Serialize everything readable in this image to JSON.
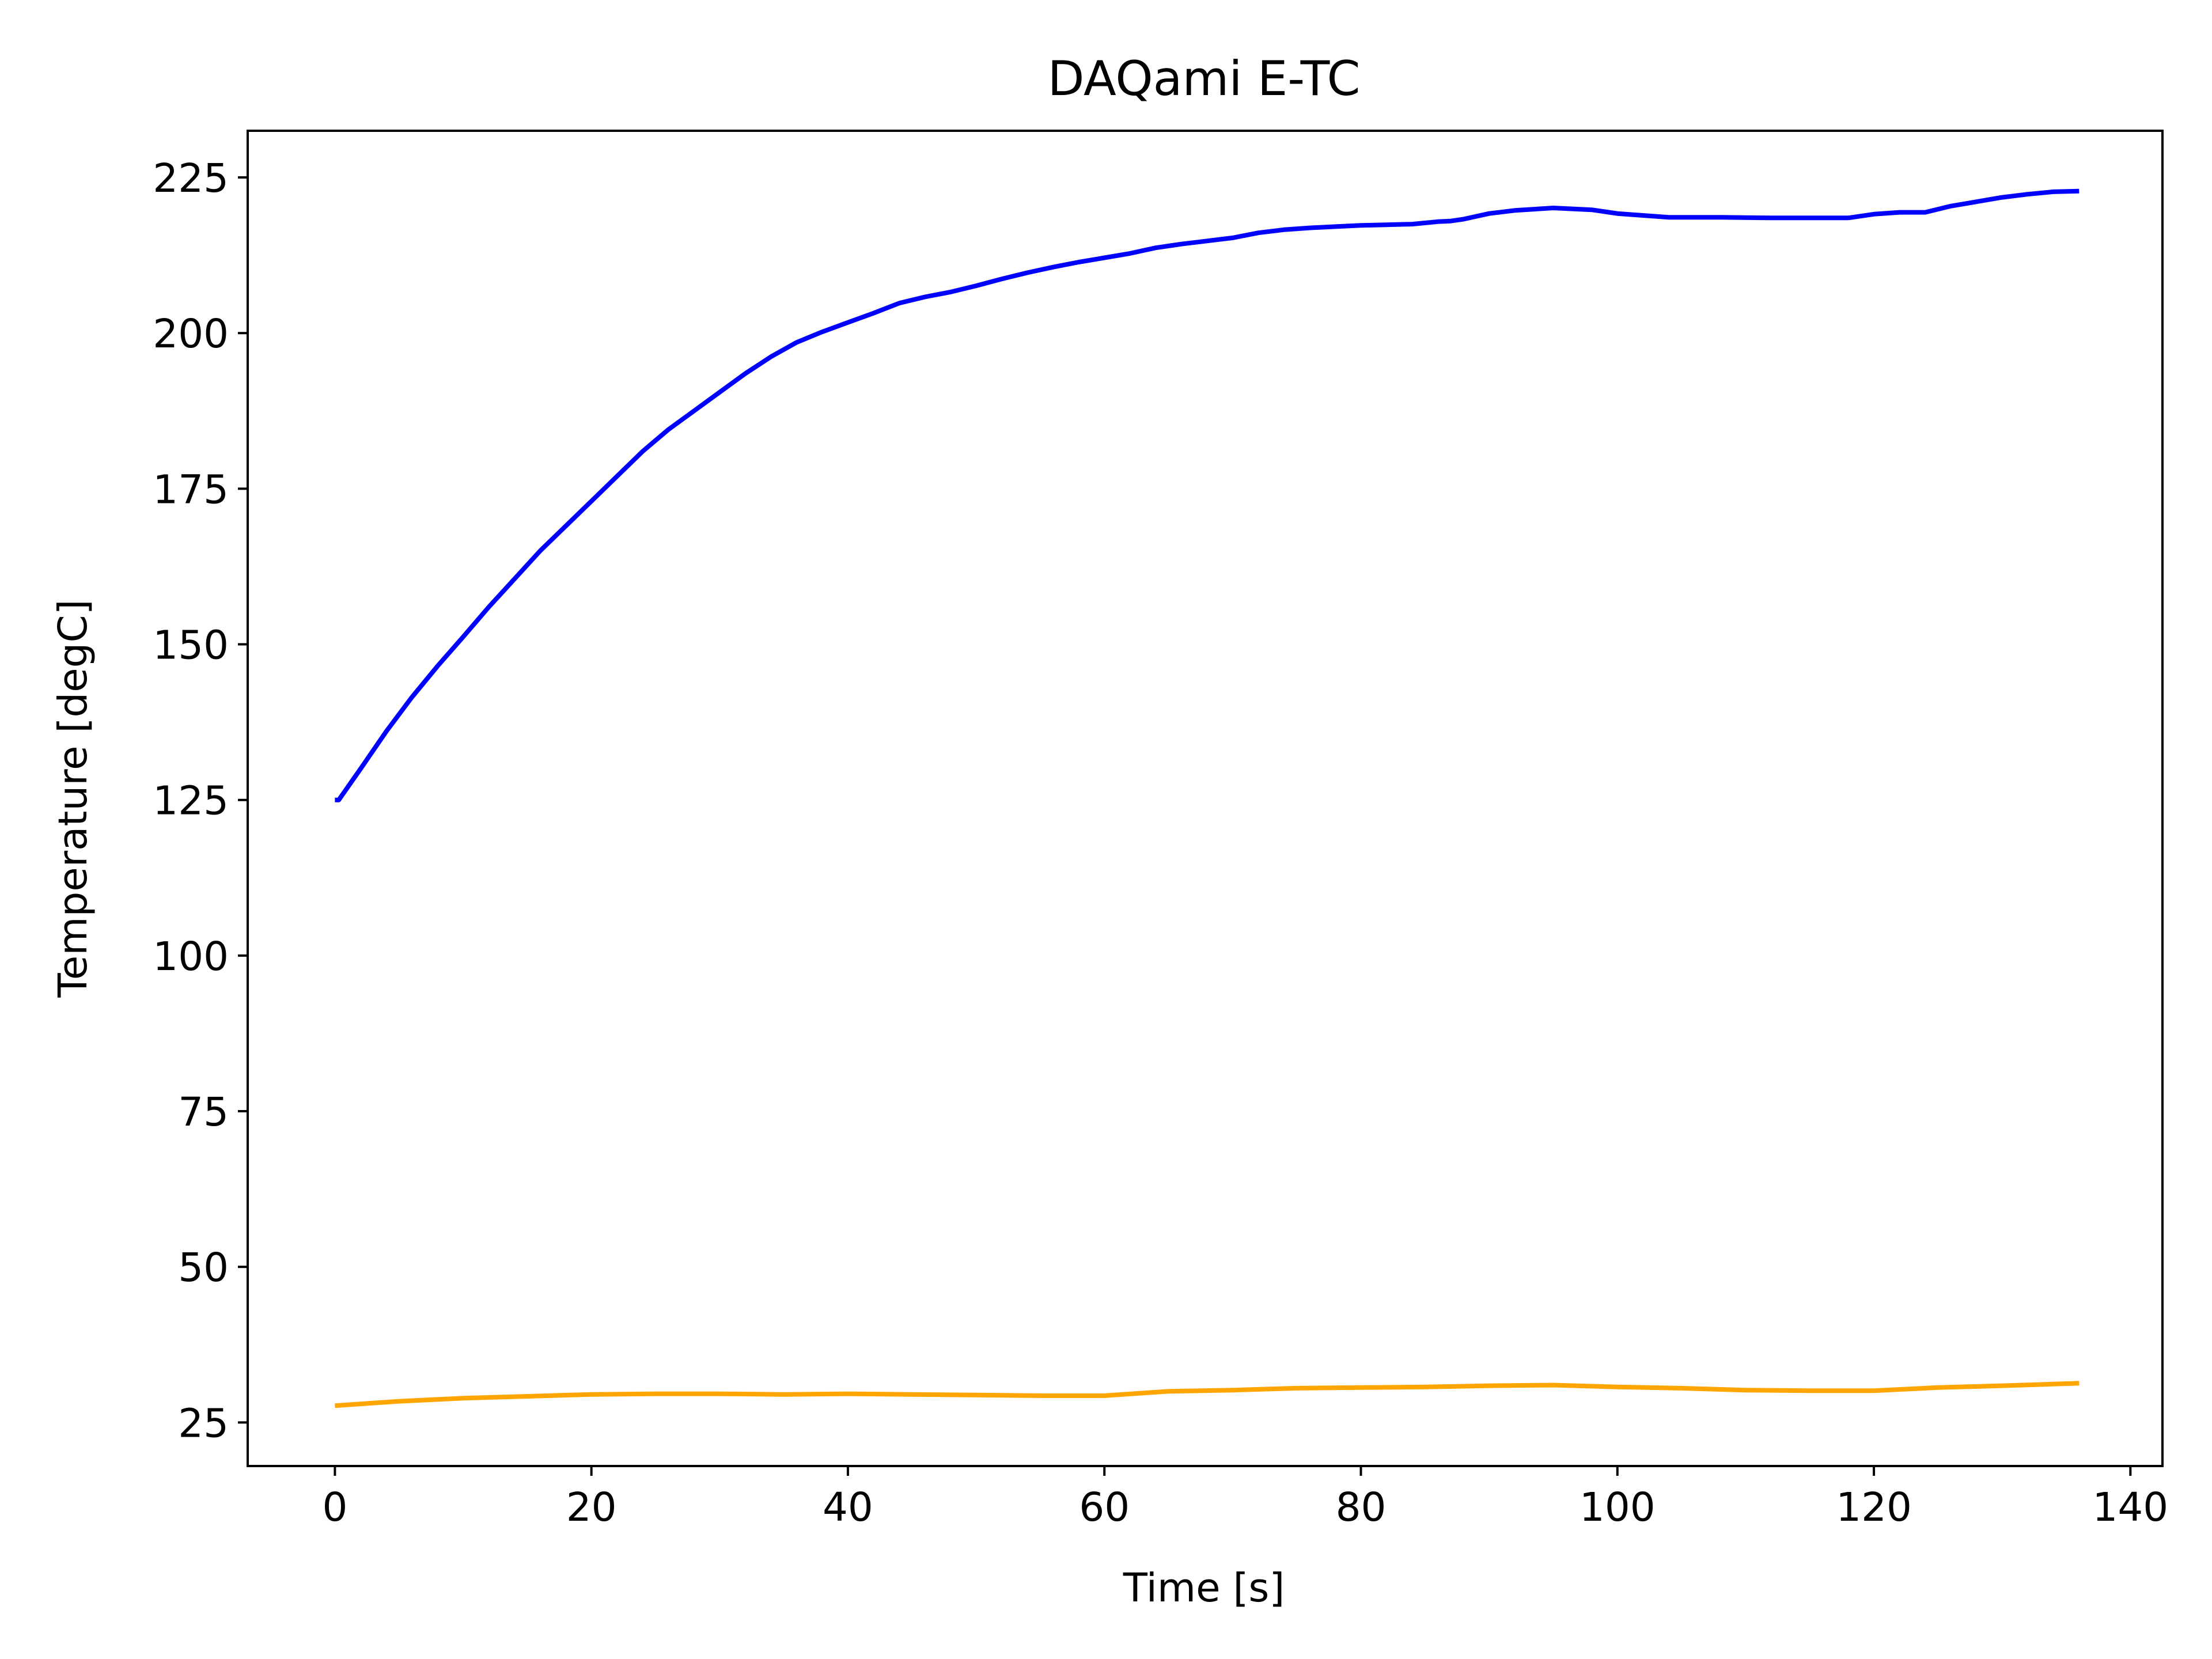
{
  "chart_data": {
    "type": "line",
    "title": "DAQami E-TC",
    "xlabel": "Time [s]",
    "ylabel": "Temperature [degC]",
    "xlim": [
      -6.8,
      142.5
    ],
    "ylim": [
      18,
      232.5
    ],
    "xticks": [
      0,
      20,
      40,
      60,
      80,
      100,
      120,
      140
    ],
    "yticks": [
      25,
      50,
      75,
      100,
      125,
      150,
      175,
      200,
      225
    ],
    "grid": false,
    "series": [
      {
        "color": "#0000ff",
        "x": [
          0,
          0.3,
          2,
          4,
          6,
          8,
          10,
          12,
          14,
          16,
          18,
          20,
          22,
          24,
          26,
          28,
          30,
          32,
          34,
          36,
          38,
          40,
          42,
          44,
          46,
          48,
          50,
          52,
          54,
          56,
          58,
          60,
          62,
          64,
          66,
          68,
          70,
          72,
          74,
          76,
          78,
          80,
          82,
          84,
          86,
          87,
          88,
          90,
          92,
          95,
          98,
          100,
          104,
          108,
          112,
          116,
          118,
          120,
          122,
          124,
          126,
          128,
          130,
          132,
          134,
          136
        ],
        "y": [
          125,
          125,
          130,
          136,
          141.5,
          146.5,
          151.2,
          156,
          160.5,
          165,
          169,
          173,
          177,
          181,
          184.5,
          187.5,
          190.5,
          193.5,
          196.2,
          198.5,
          200.2,
          201.7,
          203.2,
          204.8,
          205.8,
          206.6,
          207.6,
          208.7,
          209.7,
          210.6,
          211.4,
          212.1,
          212.8,
          213.7,
          214.3,
          214.8,
          215.3,
          216.1,
          216.6,
          216.9,
          217.1,
          217.3,
          217.4,
          217.5,
          217.9,
          218,
          218.3,
          219.2,
          219.7,
          220.1,
          219.8,
          219.2,
          218.6,
          218.6,
          218.5,
          218.5,
          218.5,
          219.1,
          219.4,
          219.4,
          220.4,
          221.1,
          221.8,
          222.3,
          222.7,
          222.8
        ]
      },
      {
        "color": "#ffa500",
        "x": [
          0,
          5,
          10,
          15,
          20,
          25,
          30,
          35,
          40,
          45,
          50,
          55,
          60,
          65,
          70,
          75,
          80,
          85,
          90,
          95,
          100,
          105,
          110,
          115,
          120,
          125,
          130,
          136
        ],
        "y": [
          27.7,
          28.4,
          28.9,
          29.2,
          29.5,
          29.6,
          29.6,
          29.5,
          29.6,
          29.5,
          29.4,
          29.3,
          29.3,
          30,
          30.2,
          30.5,
          30.6,
          30.7,
          30.9,
          31,
          30.7,
          30.5,
          30.2,
          30.1,
          30.1,
          30.6,
          30.9,
          31.3
        ]
      }
    ]
  }
}
